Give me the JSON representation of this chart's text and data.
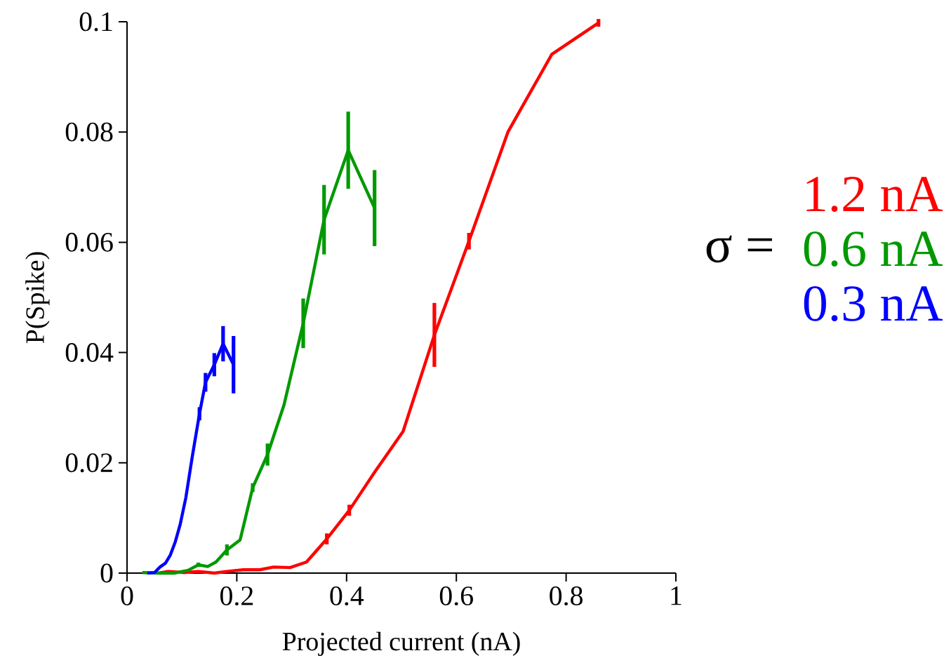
{
  "chart_data": {
    "type": "line",
    "xlabel": "Projected current (nA)",
    "ylabel": "P(Spike)",
    "legend_title": "σ =",
    "legend": "right",
    "marker": "none",
    "line_style": "solid",
    "xlim": [
      0,
      1
    ],
    "ylim": [
      0,
      0.1
    ],
    "xticks": [
      0,
      0.2,
      0.4,
      0.6,
      0.8,
      1
    ],
    "yticks": [
      0,
      0.02,
      0.04,
      0.06,
      0.08,
      0.1
    ],
    "series": [
      {
        "name": "1.2 nA",
        "color": "#ff0000",
        "x": [
          0.058,
          0.075,
          0.104,
          0.13,
          0.159,
          0.182,
          0.212,
          0.242,
          0.267,
          0.297,
          0.327,
          0.364,
          0.405,
          0.451,
          0.503,
          0.56,
          0.623,
          0.694,
          0.774,
          0.859
        ],
        "values": [
          0,
          0.0003,
          0.0001,
          0.0003,
          0,
          0.0003,
          0.0006,
          0.0006,
          0.0011,
          0.001,
          0.002,
          0.0062,
          0.0114,
          0.0183,
          0.0257,
          0.0432,
          0.0602,
          0.08,
          0.0941,
          0.0998
        ],
        "errors": [
          null,
          null,
          null,
          null,
          null,
          null,
          null,
          null,
          null,
          null,
          null,
          0.001,
          0.001,
          null,
          null,
          0.0058,
          0.0015,
          null,
          null,
          0.0007
        ]
      },
      {
        "name": "0.6 nA",
        "color": "#009900",
        "x": [
          0.028,
          0.056,
          0.086,
          0.111,
          0.13,
          0.147,
          0.162,
          0.182,
          0.206,
          0.229,
          0.256,
          0.286,
          0.321,
          0.359,
          0.403,
          0.451
        ],
        "values": [
          0.0001,
          0,
          0,
          0.0005,
          0.0015,
          0.0012,
          0.002,
          0.0042,
          0.006,
          0.0155,
          0.0215,
          0.0305,
          0.0453,
          0.0641,
          0.0767,
          0.0662
        ],
        "errors": [
          null,
          null,
          null,
          null,
          0.0004,
          null,
          null,
          0.001,
          null,
          0.0008,
          0.002,
          null,
          0.0045,
          0.0063,
          0.007,
          0.0069
        ]
      },
      {
        "name": "0.3 nA",
        "color": "#0000ff",
        "x": [
          0.037,
          0.05,
          0.06,
          0.07,
          0.079,
          0.088,
          0.097,
          0.107,
          0.119,
          0.132,
          0.143,
          0.159,
          0.175,
          0.194
        ],
        "values": [
          0,
          0.0001,
          0.0011,
          0.0018,
          0.0033,
          0.0057,
          0.0089,
          0.0136,
          0.0212,
          0.0289,
          0.0346,
          0.0378,
          0.0416,
          0.0378
        ],
        "errors": [
          null,
          null,
          null,
          null,
          null,
          null,
          null,
          null,
          null,
          0.0012,
          0.0017,
          0.0021,
          0.0032,
          0.0052
        ]
      }
    ]
  }
}
